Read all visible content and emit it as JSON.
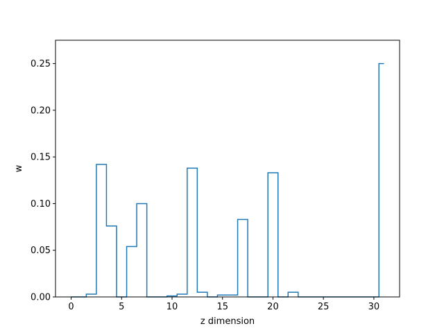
{
  "chart_data": {
    "type": "step",
    "title": "",
    "xlabel": "z dimension",
    "ylabel": "w",
    "xlim": [
      -1.55,
      32.55
    ],
    "ylim": [
      0.0,
      0.275
    ],
    "xticks": [
      0,
      5,
      10,
      15,
      20,
      25,
      30
    ],
    "yticks": [
      0.0,
      0.05,
      0.1,
      0.15,
      0.2,
      0.25
    ],
    "xtick_labels": [
      "0",
      "5",
      "10",
      "15",
      "20",
      "25",
      "30"
    ],
    "ytick_labels": [
      "0.00",
      "0.05",
      "0.10",
      "0.15",
      "0.20",
      "0.25"
    ],
    "step_where": "mid",
    "grid": false,
    "line_color": "#1f77b4",
    "series": [
      {
        "x": [
          0,
          1,
          2,
          3,
          4,
          5,
          6,
          7,
          8,
          9,
          10,
          11,
          12,
          13,
          14,
          15,
          16,
          17,
          18,
          19,
          20,
          21,
          22,
          23,
          24,
          25,
          26,
          27,
          28,
          29,
          30,
          31
        ],
        "values": [
          0.0,
          0.0,
          0.003,
          0.142,
          0.076,
          0.0,
          0.054,
          0.1,
          0.0,
          0.0,
          0.001,
          0.003,
          0.138,
          0.005,
          0.0,
          0.002,
          0.002,
          0.083,
          0.0,
          0.0,
          0.133,
          0.0,
          0.005,
          0.0,
          0.0,
          0.0,
          0.0,
          0.0,
          0.0,
          0.0,
          0.0,
          0.25
        ]
      }
    ]
  }
}
